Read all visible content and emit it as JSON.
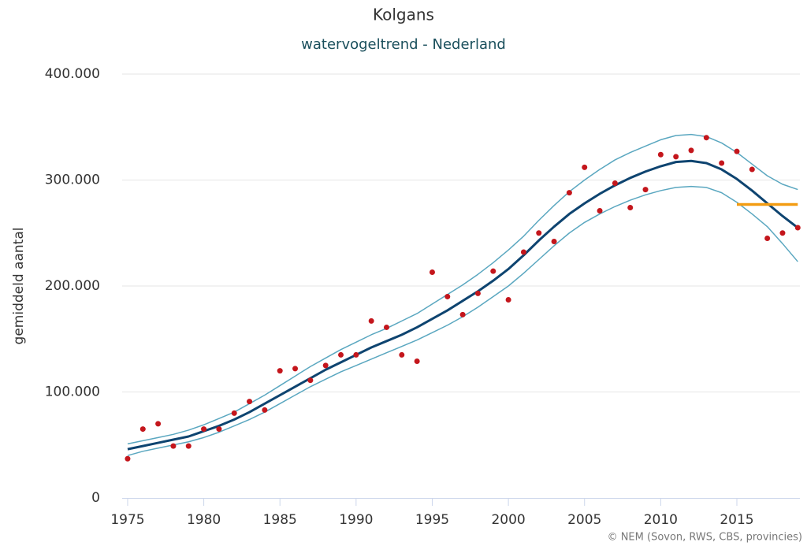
{
  "chart_data": {
    "type": "line",
    "title": "Kolgans",
    "subtitle": "watervogeltrend - Nederland",
    "y_label": "gemiddeld aantal",
    "credit": "© NEM (Sovon, RWS, CBS, provincies)",
    "x": [
      1975,
      1976,
      1977,
      1978,
      1979,
      1980,
      1981,
      1982,
      1983,
      1984,
      1985,
      1986,
      1987,
      1988,
      1989,
      1990,
      1991,
      1992,
      1993,
      1994,
      1995,
      1996,
      1997,
      1998,
      1999,
      2000,
      2001,
      2002,
      2003,
      2004,
      2005,
      2006,
      2007,
      2008,
      2009,
      2010,
      2011,
      2012,
      2013,
      2014,
      2015,
      2016,
      2017,
      2018,
      2019
    ],
    "xlim": [
      1974.64,
      2019.14
    ],
    "xticks": [
      1975,
      1980,
      1985,
      1990,
      1995,
      2000,
      2005,
      2010,
      2015
    ],
    "ylim": [
      0,
      400000
    ],
    "yticks": [
      0,
      {
        "value": 100000,
        "label": "100.000"
      },
      {
        "value": 200000,
        "label": "200.000"
      },
      {
        "value": 300000,
        "label": "300.000"
      },
      {
        "value": 400000,
        "label": "400.000"
      }
    ],
    "grid": true,
    "series": [
      {
        "kind": "line",
        "color": "#5aa7c0",
        "width": 1.5,
        "values": [
          51000,
          54000,
          57000,
          60000,
          64000,
          69000,
          75000,
          81000,
          89000,
          97000,
          106000,
          115000,
          124000,
          132000,
          140000,
          147000,
          154000,
          160000,
          167000,
          174000,
          183000,
          192000,
          201000,
          211000,
          222000,
          234000,
          247000,
          262000,
          276000,
          289000,
          300000,
          310000,
          319000,
          326000,
          332000,
          338000,
          342000,
          343000,
          341000,
          335000,
          326000,
          315000,
          304000,
          296000,
          291000
        ]
      },
      {
        "kind": "line",
        "color": "#5aa7c0",
        "width": 1.5,
        "values": [
          40000,
          44000,
          47000,
          50000,
          53000,
          57000,
          62000,
          68000,
          74000,
          81000,
          89000,
          97000,
          105000,
          112000,
          119000,
          125000,
          131000,
          137000,
          143000,
          149000,
          156000,
          163000,
          171000,
          180000,
          190000,
          200000,
          212000,
          225000,
          238000,
          250000,
          260000,
          268000,
          275000,
          281000,
          286000,
          290000,
          293000,
          294000,
          293000,
          288000,
          279000,
          268000,
          256000,
          240000,
          223000
        ]
      },
      {
        "kind": "line",
        "color": "#0e4470",
        "width": 3,
        "values": [
          46000,
          49000,
          52000,
          55000,
          58000,
          63000,
          68000,
          74000,
          81000,
          89000,
          97000,
          105000,
          113000,
          121000,
          128000,
          135000,
          142000,
          148000,
          154000,
          161000,
          169000,
          177000,
          186000,
          195000,
          205000,
          216000,
          229000,
          243000,
          256000,
          268000,
          278000,
          287000,
          295000,
          302000,
          308000,
          313000,
          317000,
          318000,
          316000,
          310000,
          301000,
          290000,
          278000,
          266000,
          255000
        ]
      },
      {
        "kind": "line",
        "color": "#f39c12",
        "width": 3.5,
        "values": [
          null,
          null,
          null,
          null,
          null,
          null,
          null,
          null,
          null,
          null,
          null,
          null,
          null,
          null,
          null,
          null,
          null,
          null,
          null,
          null,
          null,
          null,
          null,
          null,
          null,
          null,
          null,
          null,
          null,
          null,
          null,
          null,
          null,
          null,
          null,
          null,
          null,
          null,
          null,
          null,
          277000,
          277000,
          277000,
          277000,
          277000
        ]
      },
      {
        "kind": "points",
        "color": "#c4161c",
        "values": [
          37000,
          65000,
          70000,
          49000,
          49000,
          65000,
          65000,
          80000,
          91000,
          83000,
          120000,
          122000,
          111000,
          125000,
          135000,
          135000,
          167000,
          161000,
          135000,
          129000,
          213000,
          190000,
          173000,
          193000,
          214000,
          187000,
          232000,
          250000,
          242000,
          288000,
          312000,
          271000,
          297000,
          274000,
          291000,
          324000,
          322000,
          328000,
          340000,
          316000,
          327000,
          310000,
          245000,
          250000,
          255000
        ]
      }
    ]
  }
}
